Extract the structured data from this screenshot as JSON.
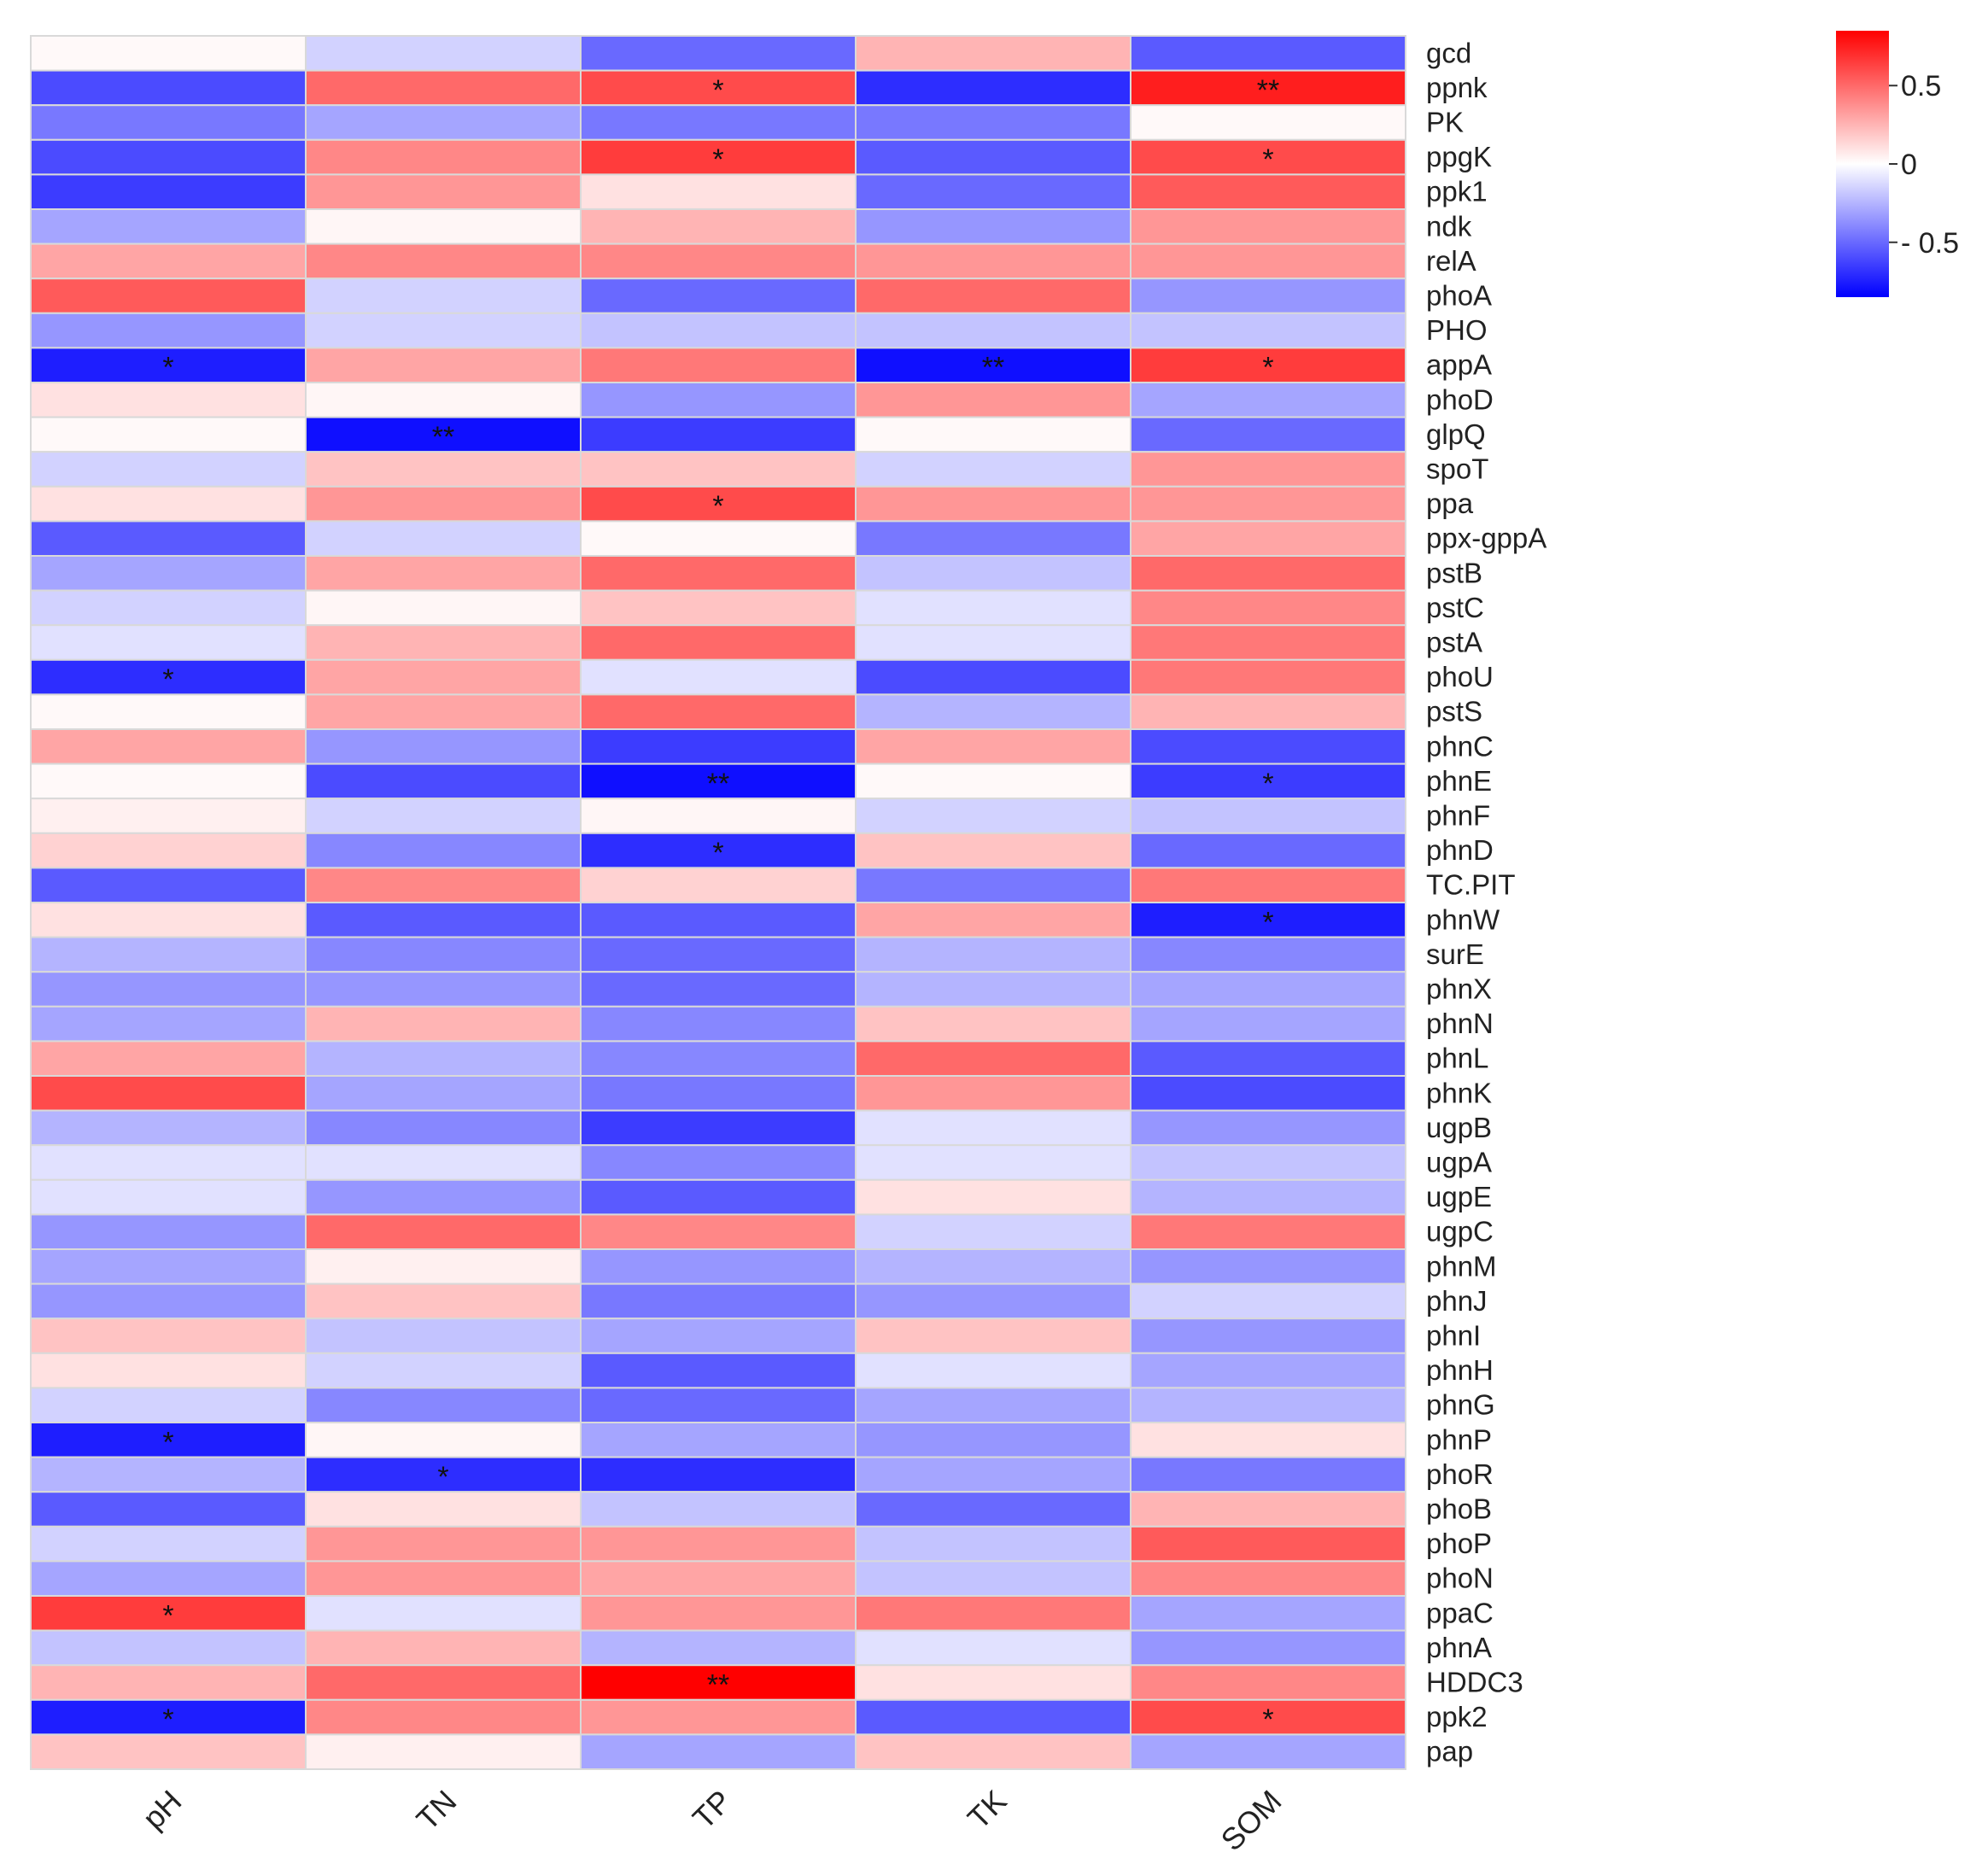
{
  "chart_data": {
    "type": "heatmap",
    "title": "",
    "xlabel": "",
    "ylabel": "",
    "columns": [
      "pH",
      "TN",
      "TP",
      "TK",
      "SOM"
    ],
    "rows": [
      "gcd",
      "ppnk",
      "PK",
      "ppgK",
      "ppk1",
      "ndk",
      "relA",
      "phoA",
      "PHO",
      "appA",
      "phoD",
      "glpQ",
      "spoT",
      "ppa",
      "ppx-gppA",
      "pstB",
      "pstC",
      "pstA",
      "phoU",
      "pstS",
      "phnC",
      "phnE",
      "phnF",
      "phnD",
      "TC.PIT",
      "phnW",
      "surE",
      "phnX",
      "phnN",
      "phnL",
      "phnK",
      "ugpB",
      "ugpA",
      "ugpE",
      "ugpC",
      "phnM",
      "phnJ",
      "phnI",
      "phnH",
      "phnG",
      "phnP",
      "phoR",
      "phoB",
      "phoP",
      "phoN",
      "ppaC",
      "phnA",
      "HDDC3",
      "ppk2",
      "pap"
    ],
    "values": [
      [
        0.02,
        -0.15,
        -0.5,
        0.25,
        -0.55
      ],
      [
        -0.6,
        0.5,
        0.6,
        -0.7,
        0.75
      ],
      [
        -0.45,
        -0.3,
        -0.45,
        -0.45,
        0.02
      ],
      [
        -0.6,
        0.4,
        0.65,
        -0.55,
        0.6
      ],
      [
        -0.65,
        0.35,
        0.1,
        -0.5,
        0.55
      ],
      [
        -0.3,
        0.03,
        0.25,
        -0.35,
        0.35
      ],
      [
        0.3,
        0.4,
        0.4,
        0.35,
        0.35
      ],
      [
        0.55,
        -0.15,
        -0.5,
        0.5,
        -0.35
      ],
      [
        -0.35,
        -0.15,
        -0.2,
        -0.2,
        -0.2
      ],
      [
        -0.75,
        0.3,
        0.45,
        -0.8,
        0.65
      ],
      [
        0.1,
        0.03,
        -0.35,
        0.35,
        -0.3
      ],
      [
        0.02,
        -0.8,
        -0.65,
        0.02,
        -0.5
      ],
      [
        -0.15,
        0.2,
        0.2,
        -0.15,
        0.35
      ],
      [
        0.1,
        0.35,
        0.6,
        0.35,
        0.35
      ],
      [
        -0.55,
        -0.15,
        0.02,
        -0.45,
        0.3
      ],
      [
        -0.3,
        0.3,
        0.5,
        -0.2,
        0.5
      ],
      [
        -0.15,
        0.03,
        0.2,
        -0.1,
        0.4
      ],
      [
        -0.1,
        0.25,
        0.5,
        -0.1,
        0.45
      ],
      [
        -0.7,
        0.3,
        -0.1,
        -0.6,
        0.45
      ],
      [
        0.02,
        0.3,
        0.5,
        -0.25,
        0.25
      ],
      [
        0.3,
        -0.35,
        -0.65,
        0.3,
        -0.6
      ],
      [
        0.02,
        -0.6,
        -0.8,
        0.02,
        -0.65
      ],
      [
        0.05,
        -0.15,
        0.03,
        -0.15,
        -0.2
      ],
      [
        0.15,
        -0.4,
        -0.7,
        0.2,
        -0.5
      ],
      [
        -0.55,
        0.4,
        0.15,
        -0.45,
        0.45
      ],
      [
        0.1,
        -0.55,
        -0.55,
        0.3,
        -0.75
      ],
      [
        -0.25,
        -0.4,
        -0.5,
        -0.25,
        -0.4
      ],
      [
        -0.35,
        -0.35,
        -0.5,
        -0.25,
        -0.3
      ],
      [
        -0.3,
        0.25,
        -0.4,
        0.2,
        -0.3
      ],
      [
        0.3,
        -0.25,
        -0.4,
        0.5,
        -0.55
      ],
      [
        0.6,
        -0.3,
        -0.45,
        0.35,
        -0.6
      ],
      [
        -0.25,
        -0.4,
        -0.65,
        -0.1,
        -0.35
      ],
      [
        -0.1,
        -0.1,
        -0.4,
        -0.1,
        -0.2
      ],
      [
        -0.1,
        -0.35,
        -0.55,
        0.1,
        -0.25
      ],
      [
        -0.35,
        0.5,
        0.4,
        -0.15,
        0.45
      ],
      [
        -0.3,
        0.05,
        -0.35,
        -0.25,
        -0.35
      ],
      [
        -0.35,
        0.2,
        -0.45,
        -0.35,
        -0.15
      ],
      [
        0.2,
        -0.2,
        -0.3,
        0.2,
        -0.35
      ],
      [
        0.1,
        -0.15,
        -0.55,
        -0.1,
        -0.3
      ],
      [
        -0.15,
        -0.4,
        -0.5,
        -0.3,
        -0.25
      ],
      [
        -0.75,
        0.03,
        -0.3,
        -0.35,
        0.1
      ],
      [
        -0.25,
        -0.7,
        -0.7,
        -0.3,
        -0.45
      ],
      [
        -0.55,
        0.1,
        -0.2,
        -0.5,
        0.25
      ],
      [
        -0.15,
        0.35,
        0.35,
        -0.2,
        0.55
      ],
      [
        -0.3,
        0.35,
        0.3,
        -0.2,
        0.4
      ],
      [
        0.65,
        -0.1,
        0.35,
        0.45,
        -0.3
      ],
      [
        -0.2,
        0.25,
        -0.25,
        -0.1,
        -0.35
      ],
      [
        0.25,
        0.5,
        0.85,
        0.1,
        0.4
      ],
      [
        -0.75,
        0.4,
        0.35,
        -0.55,
        0.6
      ],
      [
        0.2,
        0.05,
        -0.3,
        0.2,
        -0.3
      ]
    ],
    "significance": [
      [
        "",
        "",
        "",
        "",
        ""
      ],
      [
        "",
        "",
        "*",
        "",
        "**"
      ],
      [
        "",
        "",
        "",
        "",
        ""
      ],
      [
        "",
        "",
        "*",
        "",
        "*"
      ],
      [
        "",
        "",
        "",
        "",
        ""
      ],
      [
        "",
        "",
        "",
        "",
        ""
      ],
      [
        "",
        "",
        "",
        "",
        ""
      ],
      [
        "",
        "",
        "",
        "",
        ""
      ],
      [
        "",
        "",
        "",
        "",
        ""
      ],
      [
        "*",
        "",
        "",
        "**",
        "*"
      ],
      [
        "",
        "",
        "",
        "",
        ""
      ],
      [
        "",
        "**",
        "",
        "",
        ""
      ],
      [
        "",
        "",
        "",
        "",
        ""
      ],
      [
        "",
        "",
        "*",
        "",
        ""
      ],
      [
        "",
        "",
        "",
        "",
        ""
      ],
      [
        "",
        "",
        "",
        "",
        ""
      ],
      [
        "",
        "",
        "",
        "",
        ""
      ],
      [
        "",
        "",
        "",
        "",
        ""
      ],
      [
        "*",
        "",
        "",
        "",
        ""
      ],
      [
        "",
        "",
        "",
        "",
        ""
      ],
      [
        "",
        "",
        "",
        "",
        ""
      ],
      [
        "",
        "",
        "**",
        "",
        "*"
      ],
      [
        "",
        "",
        "",
        "",
        ""
      ],
      [
        "",
        "",
        "*",
        "",
        ""
      ],
      [
        "",
        "",
        "",
        "",
        ""
      ],
      [
        "",
        "",
        "",
        "",
        "*"
      ],
      [
        "",
        "",
        "",
        "",
        ""
      ],
      [
        "",
        "",
        "",
        "",
        ""
      ],
      [
        "",
        "",
        "",
        "",
        ""
      ],
      [
        "",
        "",
        "",
        "",
        ""
      ],
      [
        "",
        "",
        "",
        "",
        ""
      ],
      [
        "",
        "",
        "",
        "",
        ""
      ],
      [
        "",
        "",
        "",
        "",
        ""
      ],
      [
        "",
        "",
        "",
        "",
        ""
      ],
      [
        "",
        "",
        "",
        "",
        ""
      ],
      [
        "",
        "",
        "",
        "",
        ""
      ],
      [
        "",
        "",
        "",
        "",
        ""
      ],
      [
        "",
        "",
        "",
        "",
        ""
      ],
      [
        "",
        "",
        "",
        "",
        ""
      ],
      [
        "",
        "",
        "",
        "",
        ""
      ],
      [
        "*",
        "",
        "",
        "",
        ""
      ],
      [
        "",
        "*",
        "",
        "",
        ""
      ],
      [
        "",
        "",
        "",
        "",
        ""
      ],
      [
        "",
        "",
        "",
        "",
        ""
      ],
      [
        "",
        "",
        "",
        "",
        ""
      ],
      [
        "*",
        "",
        "",
        "",
        ""
      ],
      [
        "",
        "",
        "",
        "",
        ""
      ],
      [
        "",
        "",
        "**",
        "",
        ""
      ],
      [
        "*",
        "",
        "",
        "",
        "*"
      ],
      [
        "",
        "",
        "",
        "",
        ""
      ]
    ],
    "colorscale": {
      "min": -0.85,
      "max": 0.85,
      "low_color": "#0000ff",
      "mid_color": "#ffffff",
      "high_color": "#ff0000"
    },
    "legend": {
      "position": "top-right",
      "ticks": [
        0.5,
        0,
        -0.5
      ],
      "tick_labels": [
        "0.5",
        "0",
        "- 0.5"
      ]
    },
    "grid": false
  }
}
